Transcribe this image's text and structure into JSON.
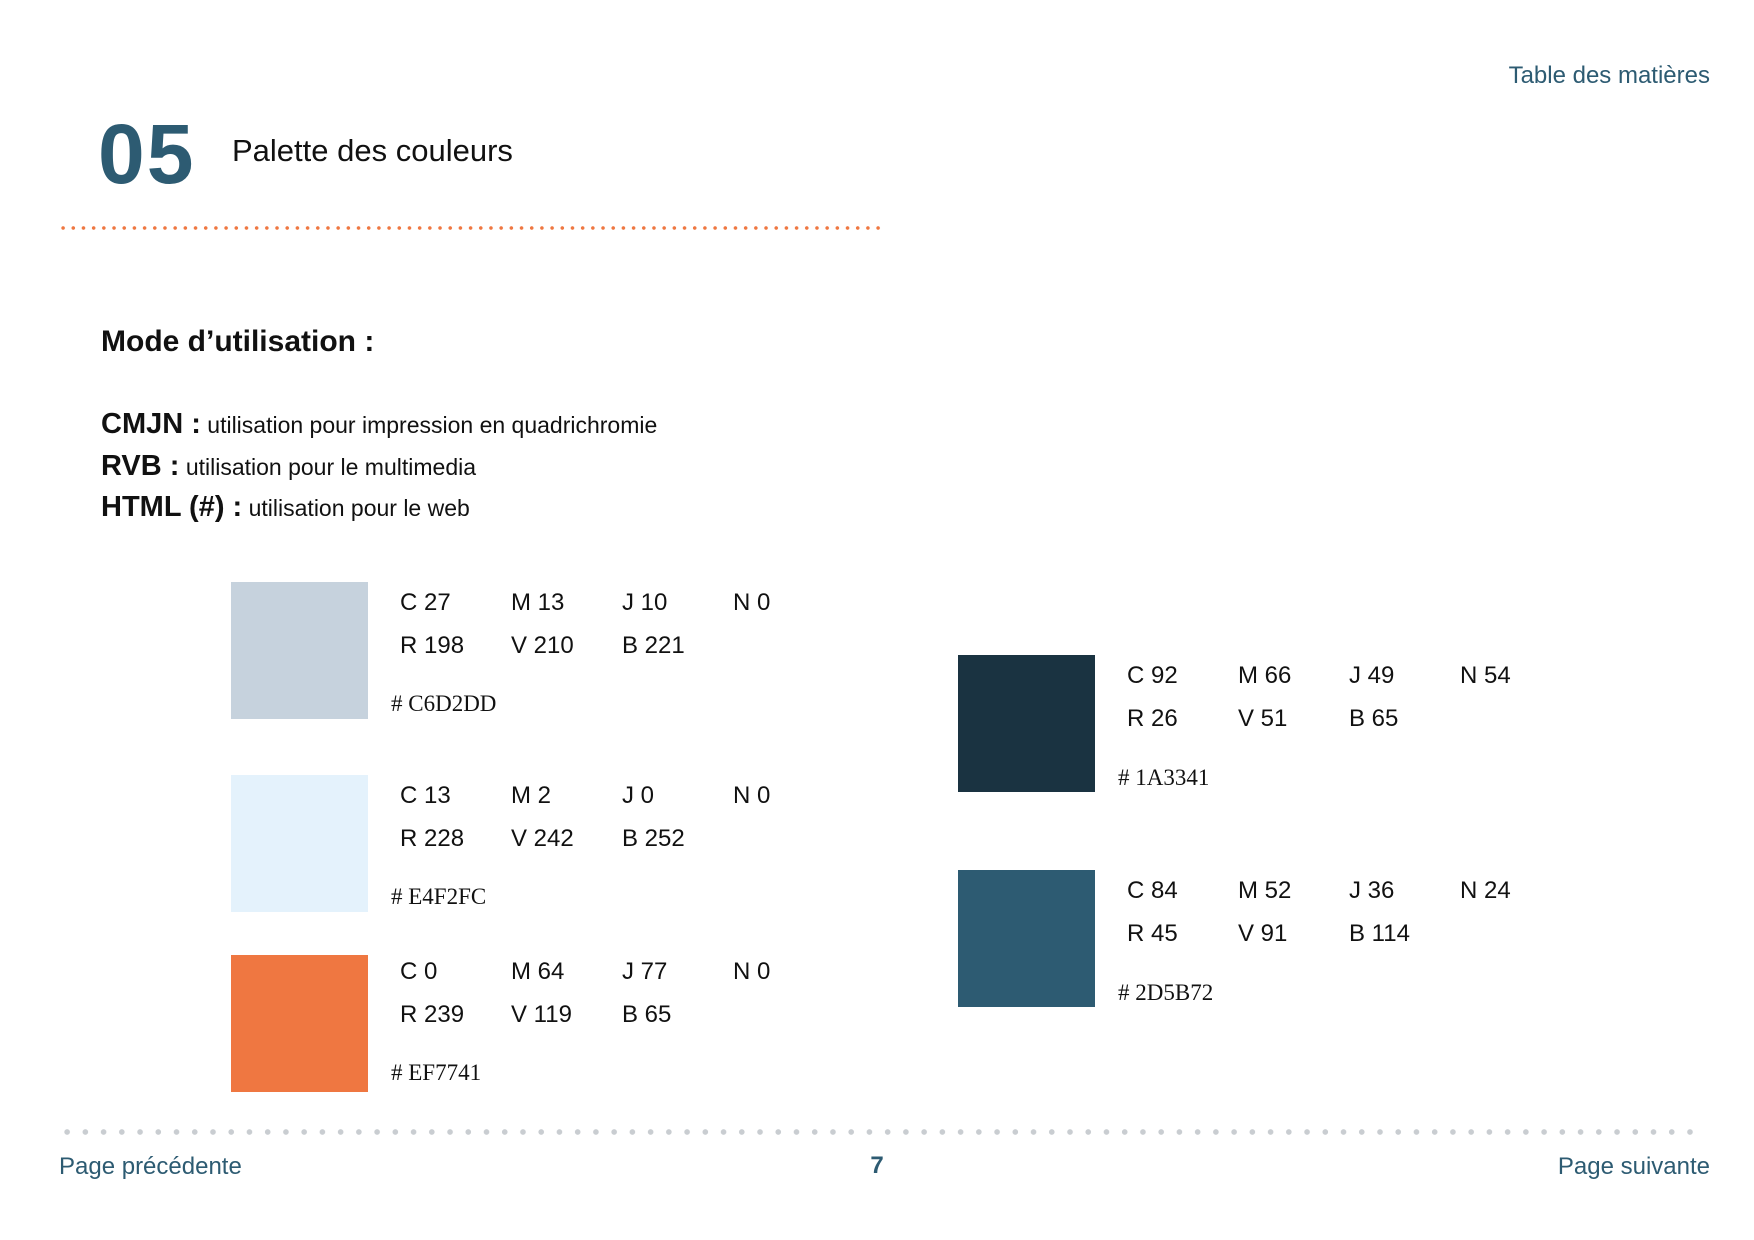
{
  "header": {
    "toc_label": "Table des matières"
  },
  "section": {
    "number": "05",
    "title": "Palette des couleurs"
  },
  "usage": {
    "heading": "Mode d’utilisation :",
    "items": [
      {
        "label": "CMJN :",
        "text": "utilisation pour impression en quadrichromie"
      },
      {
        "label": "RVB :",
        "text": "utilisation pour le multimedia"
      },
      {
        "label": "HTML (#) :",
        "text": "utilisation pour le web"
      }
    ]
  },
  "colors": [
    {
      "swatch": "#C6D2DD",
      "c": "C 27",
      "m": "M 13",
      "j": "J 10",
      "n": "N 0",
      "r": "R 198",
      "v": "V 210",
      "b": "B 221",
      "hex": "# C6D2DD"
    },
    {
      "swatch": "#E4F2FC",
      "c": "C 13",
      "m": "M 2",
      "j": "J 0",
      "n": "N 0",
      "r": "R 228",
      "v": "V 242",
      "b": "B 252",
      "hex": "# E4F2FC"
    },
    {
      "swatch": "#EF7741",
      "c": "C 0",
      "m": "M 64",
      "j": "J 77",
      "n": "N 0",
      "r": "R 239",
      "v": "V 119",
      "b": "B 65",
      "hex": "# EF7741"
    },
    {
      "swatch": "#1A3341",
      "c": "C 92",
      "m": "M 66",
      "j": "J 49",
      "n": "N 54",
      "r": "R 26",
      "v": "V 51",
      "b": "B 65",
      "hex": "# 1A3341"
    },
    {
      "swatch": "#2D5B72",
      "c": "C 84",
      "m": "M 52",
      "j": "J 36",
      "n": "N 24",
      "r": "R 45",
      "v": "V 91",
      "b": "B 114",
      "hex": "# 2D5B72"
    }
  ],
  "footer": {
    "prev_label": "Page précédente",
    "page_number": "7",
    "next_label": "Page suivante"
  }
}
